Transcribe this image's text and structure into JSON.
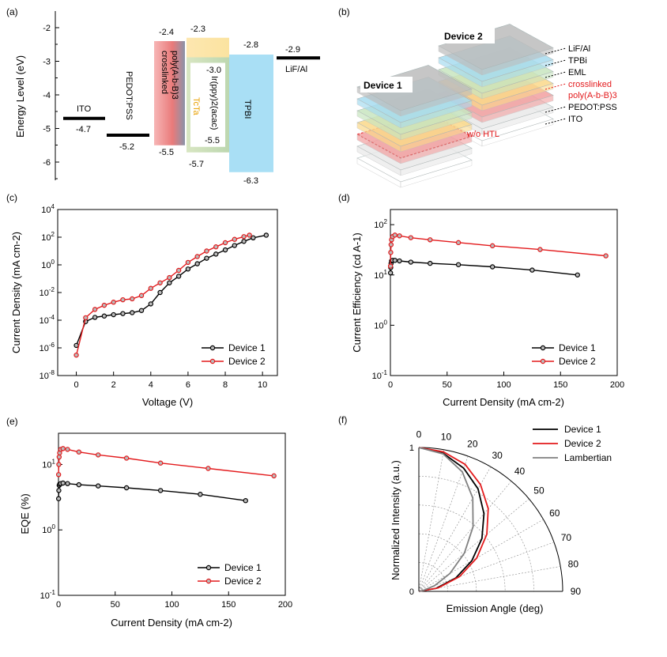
{
  "panels": {
    "a": "(a)",
    "b": "(b)",
    "c": "(c)",
    "d": "(d)",
    "e": "(e)",
    "f": "(f)"
  },
  "colors": {
    "device1": "#000000",
    "device2": "#e31a1c",
    "lambertian": "#808080",
    "crosslinked": "#f08a8a",
    "tcta": "#fbe3a0",
    "eml": "#c9ddb6",
    "tpbi": "#a9dff5"
  },
  "band_diagram": {
    "ylabel": "Energy Level (eV)",
    "yticks": [
      "-2",
      "-3",
      "-4",
      "-5",
      "-6"
    ],
    "ylim": [
      -6.5,
      -1.6
    ],
    "levels": [
      {
        "name": "ITO",
        "value": -4.7,
        "label": "-4.7"
      },
      {
        "name": "PEDOT:PSS",
        "value": -5.2,
        "label": "-5.2"
      },
      {
        "name": "LiF/Al",
        "value": -2.9,
        "label": "-2.9"
      }
    ],
    "layers": [
      {
        "name_line1": "crosslinked",
        "name_line2": "poly(A-b-B)3",
        "lumo": -2.4,
        "homo": -5.5,
        "lumo_label": "-2.4",
        "homo_label": "-5.5"
      },
      {
        "name": "TcTa",
        "lumo": -2.3,
        "homo": -5.7,
        "lumo_label": "-2.3",
        "homo_label": "-5.7"
      },
      {
        "name": "Ir(ppy)2(acac)",
        "lumo": -3.0,
        "homo": -5.5,
        "lumo_label": "-3.0",
        "homo_label": "-5.5"
      },
      {
        "name": "TPBI",
        "lumo": -2.8,
        "homo": -6.3,
        "lumo_label": "-2.8",
        "homo_label": "-6.3"
      }
    ]
  },
  "schematic": {
    "device1": "Device 1",
    "device2": "Device 2",
    "layers": [
      "LiF/Al",
      "TPBi",
      "EML",
      "crosslinked",
      "poly(A-b-B)3",
      "PEDOT:PSS",
      "ITO"
    ],
    "wo_htl": "w/o HTL"
  },
  "chart_data": [
    {
      "panel": "c",
      "type": "line",
      "xlabel": "Voltage (V)",
      "ylabel": "Current Density (mA cm-2)",
      "yscale": "log",
      "xlim": [
        -1,
        10.8
      ],
      "ylim": [
        1e-08,
        10000
      ],
      "xticks": [
        "0",
        "2",
        "4",
        "6",
        "8",
        "10"
      ],
      "yticks": [
        "10-8",
        "10-6",
        "10-4",
        "10-2",
        "100",
        "102",
        "104"
      ],
      "series": [
        {
          "name": "Device 1",
          "x": [
            0,
            0.5,
            1,
            1.5,
            2,
            2.5,
            3,
            3.5,
            4,
            4.5,
            5,
            5.5,
            6,
            6.5,
            7,
            7.5,
            8,
            8.5,
            9,
            9.5,
            10.2
          ],
          "y": [
            1.5e-06,
            8e-05,
            0.00016,
            0.0002,
            0.00025,
            0.0003,
            0.00035,
            0.0005,
            0.0015,
            0.01,
            0.05,
            0.15,
            0.5,
            1.2,
            3,
            6,
            12,
            25,
            50,
            90,
            140
          ]
        },
        {
          "name": "Device 2",
          "x": [
            0,
            0.5,
            1,
            1.5,
            2,
            2.5,
            3,
            3.5,
            4,
            4.5,
            5,
            5.5,
            6,
            6.5,
            7,
            7.5,
            8,
            8.5,
            9,
            9.3
          ],
          "y": [
            3e-07,
            0.00015,
            0.0006,
            0.0012,
            0.002,
            0.003,
            0.0035,
            0.006,
            0.02,
            0.05,
            0.12,
            0.4,
            1.5,
            4,
            10,
            20,
            40,
            70,
            110,
            140
          ]
        }
      ],
      "legend": "bottom-right"
    },
    {
      "panel": "d",
      "type": "line",
      "xlabel": "Current Density (mA cm-2)",
      "ylabel": "Current Efficiency (cd A-1)",
      "yscale": "log",
      "xlim": [
        0,
        200
      ],
      "ylim": [
        0.1,
        200
      ],
      "xticks": [
        "0",
        "50",
        "100",
        "150",
        "200"
      ],
      "yticks": [
        "10-1",
        "100",
        "101",
        "102"
      ],
      "series": [
        {
          "name": "Device 1",
          "x": [
            0.1,
            0.3,
            0.6,
            1,
            2,
            4,
            8,
            18,
            35,
            60,
            90,
            125,
            165
          ],
          "y": [
            11,
            14,
            17,
            19,
            19.5,
            19.5,
            19,
            18,
            17,
            16,
            14.5,
            12.5,
            10
          ]
        },
        {
          "name": "Device 2",
          "x": [
            0.1,
            0.3,
            0.6,
            1,
            2,
            4,
            8,
            18,
            35,
            60,
            90,
            132,
            190
          ],
          "y": [
            15,
            28,
            40,
            50,
            58,
            62,
            60,
            55,
            50,
            44,
            38,
            32,
            24
          ]
        }
      ],
      "legend": "bottom-right"
    },
    {
      "panel": "e",
      "type": "line",
      "xlabel": "Current Density (mA cm-2)",
      "ylabel": "EQE (%)",
      "yscale": "log",
      "xlim": [
        0,
        200
      ],
      "ylim": [
        0.1,
        30
      ],
      "xticks": [
        "0",
        "50",
        "100",
        "150",
        "200"
      ],
      "yticks": [
        "10-1",
        "100",
        "101"
      ],
      "series": [
        {
          "name": "Device 1",
          "x": [
            0.1,
            0.3,
            0.6,
            1,
            2,
            4,
            8,
            18,
            35,
            60,
            90,
            125,
            165
          ],
          "y": [
            3,
            4,
            4.8,
            5,
            5.1,
            5.2,
            5.1,
            4.9,
            4.7,
            4.4,
            4,
            3.5,
            2.8
          ]
        },
        {
          "name": "Device 2",
          "x": [
            0.1,
            0.3,
            0.6,
            1,
            2,
            4,
            8,
            18,
            35,
            60,
            90,
            132,
            190
          ],
          "y": [
            7,
            10,
            13,
            15,
            17,
            17.5,
            17,
            15.5,
            14,
            12.5,
            10.5,
            8.7,
            6.7
          ]
        }
      ],
      "legend": "bottom-right"
    },
    {
      "panel": "f",
      "type": "polar",
      "xlabel": "Emission Angle (deg)",
      "ylabel": "Normalized Intensity (a.u.)",
      "angle_ticks": [
        "0",
        "10",
        "20",
        "30",
        "40",
        "50",
        "60",
        "70",
        "80",
        "90"
      ],
      "radius_ticks": [
        "0",
        "1"
      ],
      "series": [
        {
          "name": "Device 1",
          "angle": [
            0,
            10,
            20,
            30,
            40,
            50,
            60,
            70,
            80,
            90
          ],
          "r": [
            1.0,
            0.99,
            0.97,
            0.95,
            0.92,
            0.89,
            0.85,
            0.8,
            0.7,
            0
          ]
        },
        {
          "name": "Device 2",
          "angle": [
            0,
            10,
            20,
            30,
            40,
            50,
            60,
            70,
            80,
            90
          ],
          "r": [
            1.0,
            1.0,
            1.0,
            0.99,
            0.98,
            0.96,
            0.93,
            0.88,
            0.78,
            0
          ]
        },
        {
          "name": "Lambertian",
          "angle": [
            0,
            10,
            20,
            30,
            40,
            50,
            60,
            70,
            80,
            90
          ],
          "r": [
            1.0,
            0.985,
            0.94,
            0.866,
            0.766,
            0.643,
            0.5,
            0.342,
            0.174,
            0
          ]
        }
      ],
      "legend": "top-right"
    }
  ]
}
